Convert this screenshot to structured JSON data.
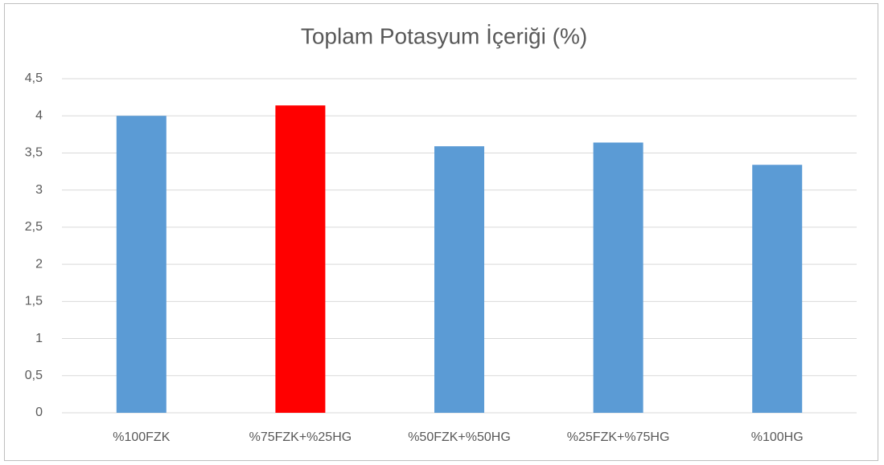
{
  "chart_data": {
    "type": "bar",
    "title": "Toplam Potasyum İçeriği (%)",
    "categories": [
      "%100FZK",
      "%75FZK+%25HG",
      "%50FZK+%50HG",
      "%25FZK+%75HG",
      "%100HG"
    ],
    "values": [
      4.0,
      4.14,
      3.59,
      3.64,
      3.34
    ],
    "colors": [
      "#5b9bd5",
      "#ff0000",
      "#5b9bd5",
      "#5b9bd5",
      "#5b9bd5"
    ],
    "ylim": [
      0,
      4.5
    ],
    "yticks": [
      0,
      {
        "value": 0.5,
        "label": "0,5"
      },
      1,
      {
        "value": 1.5,
        "label": "1,5"
      },
      2,
      {
        "value": 2.5,
        "label": "2,5"
      },
      3,
      {
        "value": 3.5,
        "label": "3,5"
      },
      4,
      {
        "value": 4.5,
        "label": "4,5"
      }
    ],
    "grid": true
  }
}
